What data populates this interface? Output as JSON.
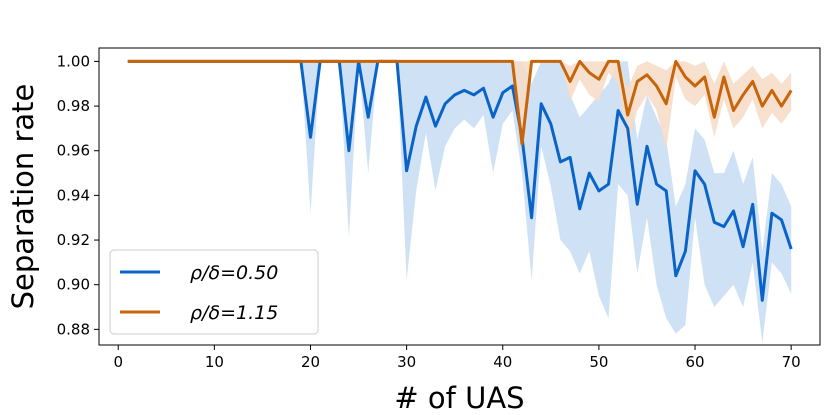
{
  "chart_data": {
    "type": "line",
    "title": "",
    "xlabel": "# of UAS",
    "ylabel": "Separation rate",
    "xlim": [
      -2,
      73
    ],
    "ylim": [
      0.873,
      1.006
    ],
    "xticks": [
      0,
      10,
      20,
      30,
      40,
      50,
      60,
      70
    ],
    "xtick_labels": [
      "0",
      "10",
      "20",
      "30",
      "40",
      "50",
      "60",
      "70"
    ],
    "yticks": [
      0.88,
      0.9,
      0.92,
      0.94,
      0.96,
      0.98,
      1.0
    ],
    "ytick_labels": [
      "0.88",
      "0.90",
      "0.92",
      "0.94",
      "0.96",
      "0.98",
      "1.00"
    ],
    "grid": false,
    "legend_position": "lower-left",
    "x": [
      1,
      2,
      3,
      4,
      5,
      6,
      7,
      8,
      9,
      10,
      11,
      12,
      13,
      14,
      15,
      16,
      17,
      18,
      19,
      20,
      21,
      22,
      23,
      24,
      25,
      26,
      27,
      28,
      29,
      30,
      31,
      32,
      33,
      34,
      35,
      36,
      37,
      38,
      39,
      40,
      41,
      42,
      43,
      44,
      45,
      46,
      47,
      48,
      49,
      50,
      51,
      52,
      53,
      54,
      55,
      56,
      57,
      58,
      59,
      60,
      61,
      62,
      63,
      64,
      65,
      66,
      67,
      68,
      69,
      70
    ],
    "series": [
      {
        "name": "ρ/δ=0.50",
        "legend_label": "ρ/δ=0.50",
        "color": "#0a64c8",
        "band_color": "#c7dcf3",
        "values": [
          1,
          1,
          1,
          1,
          1,
          1,
          1,
          1,
          1,
          1,
          1,
          1,
          1,
          1,
          1,
          1,
          1,
          1,
          1,
          0.966,
          1,
          1,
          1,
          0.96,
          1,
          0.975,
          1,
          1,
          1,
          0.951,
          0.971,
          0.984,
          0.971,
          0.981,
          0.985,
          0.987,
          0.985,
          0.988,
          0.975,
          0.986,
          0.989,
          0.966,
          0.93,
          0.981,
          0.972,
          0.955,
          0.957,
          0.934,
          0.95,
          0.942,
          0.945,
          0.978,
          0.97,
          0.936,
          0.962,
          0.945,
          0.942,
          0.904,
          0.915,
          0.951,
          0.945,
          0.928,
          0.926,
          0.933,
          0.917,
          0.936,
          0.893,
          0.932,
          0.929,
          0.916
        ],
        "lower": [
          1,
          1,
          1,
          1,
          1,
          1,
          1,
          1,
          1,
          1,
          1,
          1,
          1,
          1,
          1,
          1,
          1,
          1,
          1,
          0.932,
          1,
          1,
          1,
          0.921,
          1,
          0.95,
          1,
          1,
          1,
          0.902,
          0.942,
          0.968,
          0.942,
          0.962,
          0.97,
          0.974,
          0.97,
          0.976,
          0.95,
          0.972,
          0.978,
          0.95,
          0.902,
          0.962,
          0.944,
          0.92,
          0.915,
          0.905,
          0.915,
          0.895,
          0.885,
          0.945,
          0.94,
          0.905,
          0.93,
          0.9,
          0.885,
          0.878,
          0.882,
          0.93,
          0.9,
          0.89,
          0.895,
          0.9,
          0.89,
          0.91,
          0.874,
          0.91,
          0.905,
          0.896
        ],
        "upper": [
          1,
          1,
          1,
          1,
          1,
          1,
          1,
          1,
          1,
          1,
          1,
          1,
          1,
          1,
          1,
          1,
          1,
          1,
          1,
          1,
          1,
          1,
          1,
          1,
          1,
          1,
          1,
          1,
          1,
          1,
          1,
          1,
          1,
          1,
          1,
          1,
          1,
          1,
          1,
          1,
          1,
          1,
          0.99,
          1,
          1,
          1,
          0.985,
          0.975,
          0.98,
          0.985,
          0.99,
          1,
          1,
          0.965,
          0.985,
          0.975,
          0.965,
          0.935,
          0.945,
          0.97,
          0.965,
          0.95,
          0.95,
          0.96,
          0.945,
          0.957,
          0.915,
          0.95,
          0.945,
          0.935
        ]
      },
      {
        "name": "ρ/δ=1.15",
        "legend_label": "ρ/δ=1.15",
        "color": "#c8640a",
        "band_color": "#f6dcc6",
        "values": [
          1,
          1,
          1,
          1,
          1,
          1,
          1,
          1,
          1,
          1,
          1,
          1,
          1,
          1,
          1,
          1,
          1,
          1,
          1,
          1,
          1,
          1,
          1,
          1,
          1,
          1,
          1,
          1,
          1,
          1,
          1,
          1,
          1,
          1,
          1,
          1,
          1,
          1,
          1,
          1,
          1,
          0.963,
          1,
          1,
          1,
          1,
          0.991,
          1,
          0.995,
          0.992,
          1,
          1,
          0.976,
          0.991,
          0.994,
          0.989,
          0.981,
          1,
          0.993,
          0.989,
          0.993,
          0.975,
          0.993,
          0.978,
          0.985,
          0.991,
          0.98,
          0.987,
          0.98,
          0.987
        ],
        "lower": [
          1,
          1,
          1,
          1,
          1,
          1,
          1,
          1,
          1,
          1,
          1,
          1,
          1,
          1,
          1,
          1,
          1,
          1,
          1,
          1,
          1,
          1,
          1,
          1,
          1,
          1,
          1,
          1,
          1,
          1,
          1,
          1,
          1,
          1,
          1,
          1,
          1,
          1,
          1,
          1,
          1,
          0.963,
          1,
          1,
          1,
          1,
          0.982,
          0.992,
          0.985,
          0.982,
          0.995,
          0.99,
          0.962,
          0.978,
          0.985,
          0.978,
          0.96,
          0.993,
          0.983,
          0.98,
          0.985,
          0.966,
          0.983,
          0.97,
          0.975,
          0.983,
          0.97,
          0.977,
          0.972,
          0.978
        ],
        "upper": [
          1,
          1,
          1,
          1,
          1,
          1,
          1,
          1,
          1,
          1,
          1,
          1,
          1,
          1,
          1,
          1,
          1,
          1,
          1,
          1,
          1,
          1,
          1,
          1,
          1,
          1,
          1,
          1,
          1,
          1,
          1,
          1,
          1,
          1,
          1,
          1,
          1,
          1,
          1,
          1,
          1,
          1,
          1,
          1,
          1,
          1,
          0.998,
          1,
          1,
          1,
          1,
          1,
          0.988,
          0.998,
          1,
          0.998,
          0.996,
          1,
          1,
          0.998,
          1,
          0.99,
          1,
          0.99,
          0.994,
          0.998,
          0.992,
          0.995,
          0.99,
          0.995
        ]
      }
    ]
  }
}
